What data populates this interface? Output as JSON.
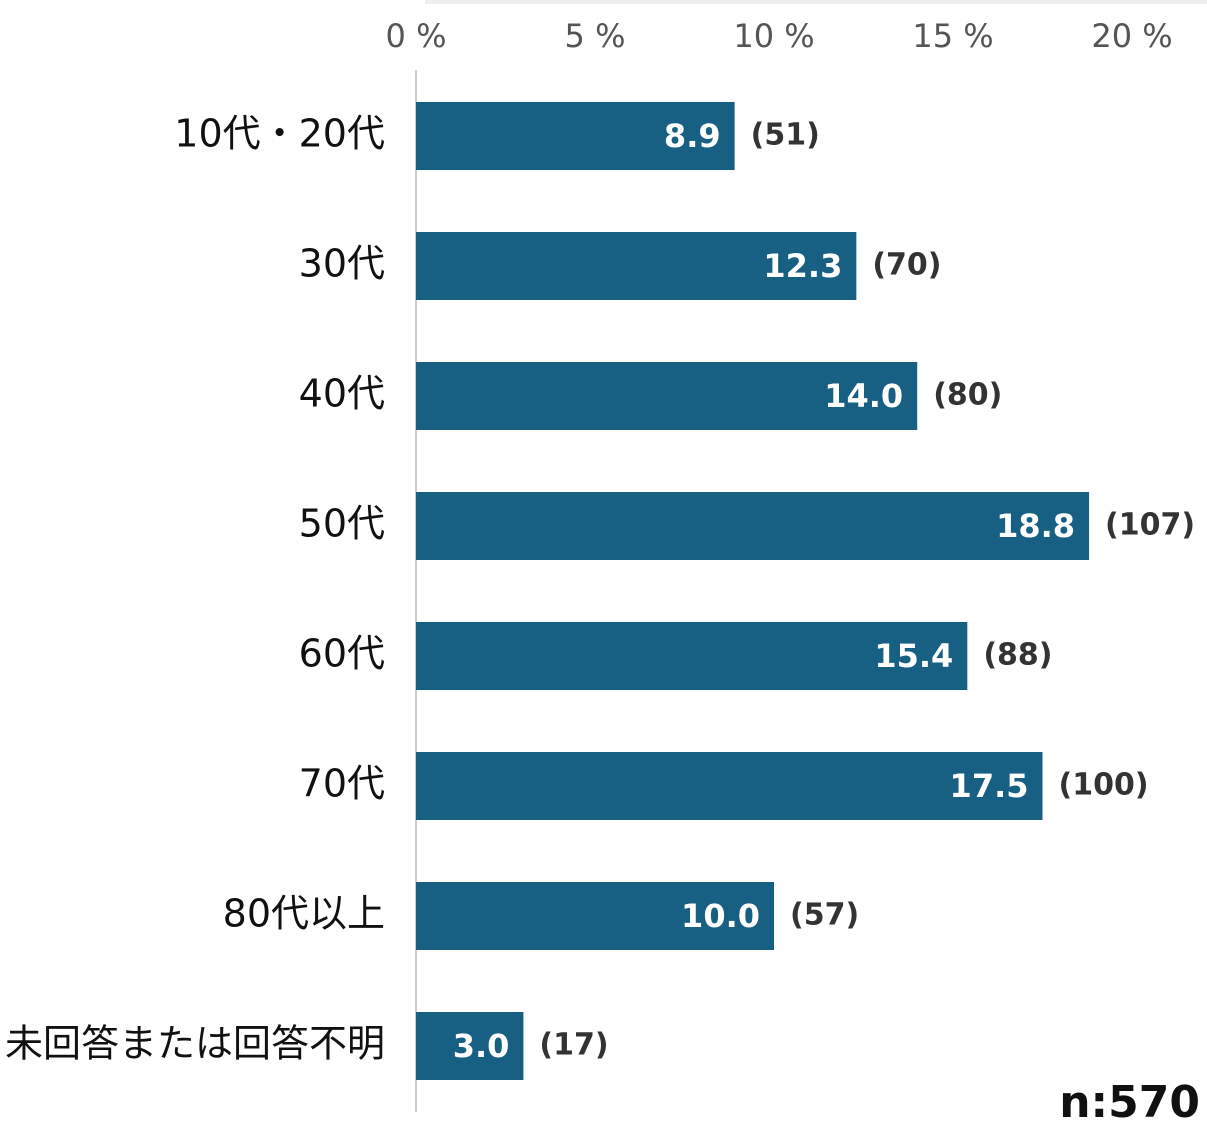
{
  "chart_data": {
    "type": "bar",
    "orientation": "horizontal",
    "categories": [
      "10代・20代",
      "30代",
      "40代",
      "50代",
      "60代",
      "70代",
      "80代以上",
      "未回答または回答不明"
    ],
    "values": [
      8.9,
      12.3,
      14.0,
      18.8,
      15.4,
      17.5,
      10.0,
      3.0
    ],
    "value_labels": [
      "8.9",
      "12.3",
      "14.0",
      "18.8",
      "15.4",
      "17.5",
      "10.0",
      "3.0"
    ],
    "count_labels": [
      "(51)",
      "(70)",
      "(80)",
      "(107)",
      "(88)",
      "(100)",
      "(57)",
      "(17)"
    ],
    "color": "#186083",
    "xlim": [
      0,
      20
    ],
    "xticks": [
      {
        "value": 0,
        "label": "0 %"
      },
      {
        "value": 5,
        "label": "5 %"
      },
      {
        "value": 10,
        "label": "10 %"
      },
      {
        "value": 15,
        "label": "15 %"
      },
      {
        "value": 20,
        "label": "20 %"
      }
    ],
    "note": "n:570"
  }
}
